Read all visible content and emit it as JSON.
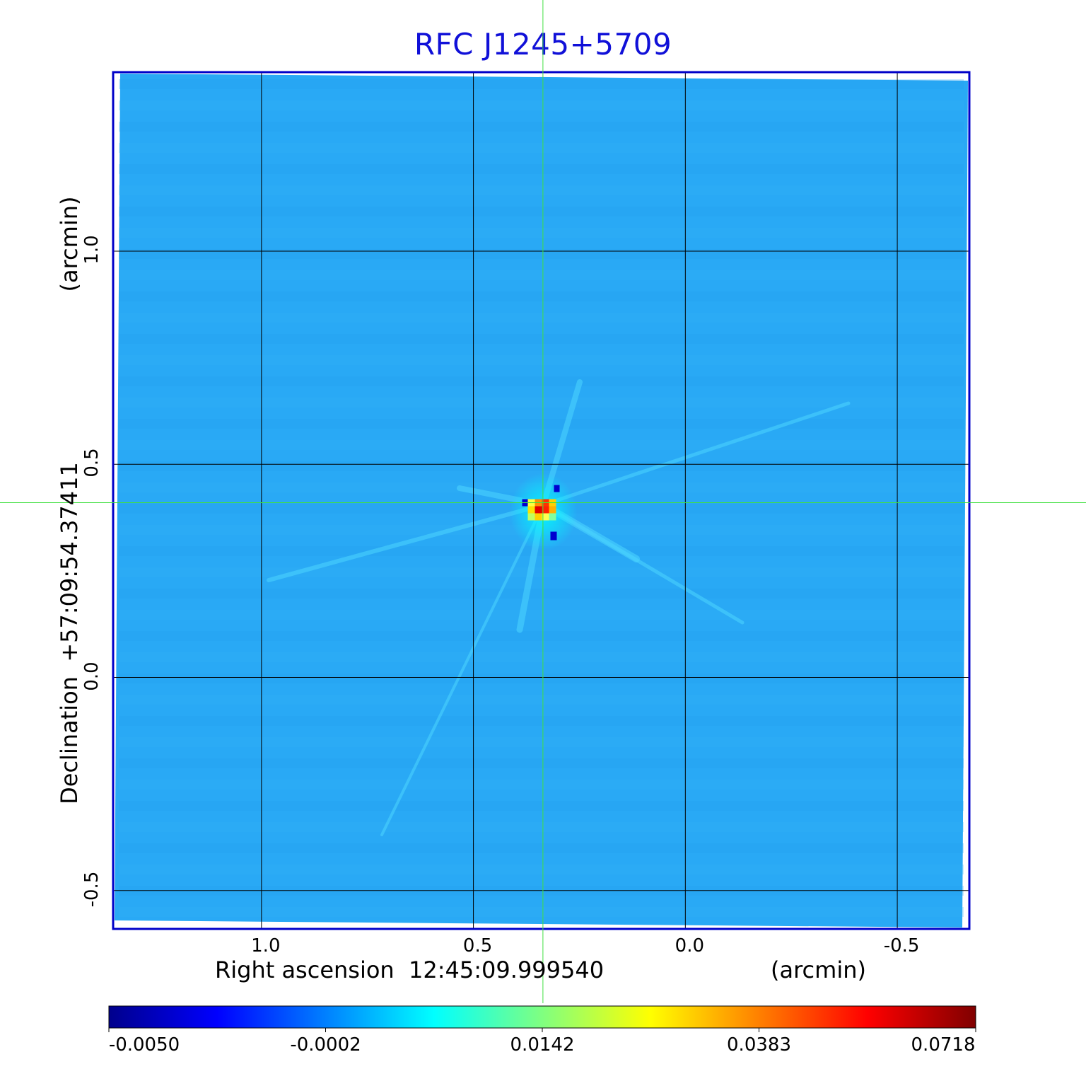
{
  "chart_data": {
    "type": "heatmap",
    "title": "RFC J1245+5709",
    "xlabel": "Right ascension  12:45:09.999540",
    "xunit": "(arcmin)",
    "ylabel": "Declination  +57:09:54.37411",
    "yunit": "(arcmin)",
    "x_range": [
      1.35,
      -0.67
    ],
    "y_range": [
      -0.59,
      1.42
    ],
    "x_ticks": [
      "1.0",
      "0.5",
      "0.0",
      "-0.5"
    ],
    "x_tick_values": [
      1.0,
      0.5,
      0.0,
      -0.5
    ],
    "y_ticks": [
      "1.0",
      "0.5",
      "0.0",
      "-0.5"
    ],
    "y_tick_values": [
      1.0,
      0.5,
      0.0,
      -0.5
    ],
    "grid": true,
    "crosshair": {
      "x": 0.336,
      "y": 0.41
    },
    "source_peak": {
      "x": 0.335,
      "y": 0.405,
      "value": 0.0718
    },
    "colorbar": {
      "ticks": [
        "-0.0050",
        "-0.0002",
        "0.0142",
        "0.0383",
        "0.0718"
      ],
      "tick_values": [
        -0.005,
        -0.0002,
        0.0142,
        0.0383,
        0.0718
      ],
      "colormap": "jet",
      "colors": [
        "#00008c",
        "#0000ff",
        "#0080ff",
        "#00ffff",
        "#80ff80",
        "#ffff00",
        "#ff8000",
        "#ff0000",
        "#800000"
      ]
    },
    "colors": {
      "frame": "#0000c8",
      "background": "#29a9f5",
      "grid": "#000000",
      "crosshair": "#40e040",
      "title": "#1010d8"
    }
  }
}
